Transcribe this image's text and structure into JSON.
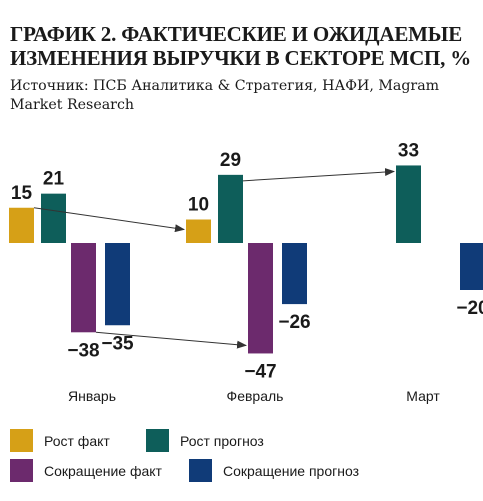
{
  "title": "ГРАФИК 2. ФАКТИЧЕСКИЕ И ОЖИДАЕМЫЕ ИЗМЕНЕНИЯ ВЫРУЧКИ В СЕКТОРЕ МСП, %",
  "source": "Источник: ПСБ Аналитика & Стратегия, НАФИ, Magram Market Research",
  "colors": {
    "growth_fact": "#d6a017",
    "growth_forecast": "#0e5e5a",
    "decline_fact": "#6c2a6d",
    "decline_forecast": "#103b78",
    "arrow": "#333333"
  },
  "legend": [
    {
      "label": "Рост факт",
      "color_key": "growth_fact"
    },
    {
      "label": "Рост прогноз",
      "color_key": "growth_forecast"
    },
    {
      "label": "Сокращение факт",
      "color_key": "decline_fact"
    },
    {
      "label": "Сокращение прогноз",
      "color_key": "decline_forecast"
    }
  ],
  "chart_data": {
    "type": "bar",
    "categories": [
      "Январь",
      "Февраль",
      "Март"
    ],
    "series": [
      {
        "name": "Рост факт",
        "values": [
          15,
          10,
          null
        ]
      },
      {
        "name": "Рост прогноз",
        "values": [
          21,
          29,
          33
        ]
      },
      {
        "name": "Сокращение факт",
        "values": [
          -38,
          -47,
          null
        ]
      },
      {
        "name": "Сокращение прогноз",
        "values": [
          -35,
          -26,
          -20
        ]
      }
    ],
    "value_labels": {
      "growth_fact": [
        "15",
        "10",
        ""
      ],
      "growth_forecast": [
        "21",
        "29",
        "33"
      ],
      "decline_fact": [
        "−38",
        "−47",
        ""
      ],
      "decline_forecast": [
        "−35",
        "−26",
        "−20"
      ]
    },
    "arrows": [
      {
        "from": "Рост прогноз, Январь",
        "to": "Рост факт, Февраль"
      },
      {
        "from": "Рост прогноз, Февраль",
        "to": "Рост прогноз, Март"
      },
      {
        "from": "Сокращение факт, Январь",
        "to": "Сокращение факт, Февраль"
      }
    ],
    "xlabel": "",
    "ylabel": "",
    "grid": false,
    "legend_position": "bottom"
  }
}
